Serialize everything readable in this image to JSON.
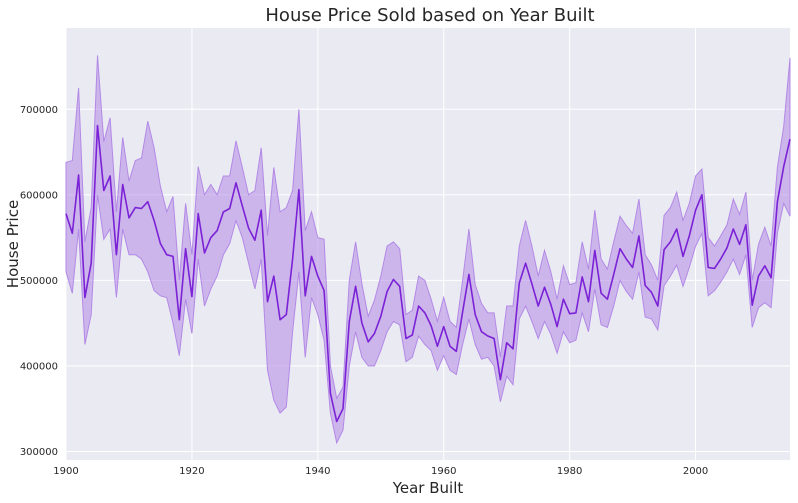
{
  "chart_data": {
    "type": "line",
    "title": "House Price Sold based on Year Built",
    "xlabel": "Year Built",
    "ylabel": "House Price",
    "xlim": [
      1900,
      2015
    ],
    "ylim": [
      290000,
      795000
    ],
    "xticks": [
      1900,
      1920,
      1940,
      1960,
      1980,
      2000
    ],
    "yticks": [
      300000,
      400000,
      500000,
      600000,
      700000
    ],
    "grid": true,
    "line_color": "#7b22d6",
    "band_color": "#b389e6",
    "background": "#eaeaf2",
    "series": [
      {
        "x": [
          1900,
          1901,
          1902,
          1903,
          1904,
          1905,
          1906,
          1907,
          1908,
          1909,
          1910,
          1911,
          1912,
          1913,
          1914,
          1915,
          1916,
          1917,
          1918,
          1919,
          1920,
          1921,
          1922,
          1923,
          1924,
          1925,
          1926,
          1927,
          1928,
          1929,
          1930,
          1931,
          1932,
          1933,
          1934,
          1935,
          1936,
          1937,
          1938,
          1939,
          1940,
          1941,
          1942,
          1943,
          1944,
          1945,
          1946,
          1947,
          1948,
          1949,
          1950,
          1951,
          1952,
          1953,
          1954,
          1955,
          1956,
          1957,
          1958,
          1959,
          1960,
          1961,
          1962,
          1963,
          1964,
          1965,
          1966,
          1967,
          1968,
          1969,
          1970,
          1971,
          1972,
          1973,
          1974,
          1975,
          1976,
          1977,
          1978,
          1979,
          1980,
          1981,
          1982,
          1983,
          1984,
          1985,
          1986,
          1987,
          1988,
          1989,
          1990,
          1991,
          1992,
          1993,
          1994,
          1995,
          1996,
          1997,
          1998,
          1999,
          2000,
          2001,
          2002,
          2003,
          2004,
          2005,
          2006,
          2007,
          2008,
          2009,
          2010,
          2011,
          2012,
          2013,
          2014,
          2015
        ],
        "values": [
          578000,
          555000,
          623000,
          480000,
          520000,
          681000,
          605000,
          622000,
          530000,
          612000,
          573000,
          585000,
          584000,
          592000,
          570000,
          543000,
          530000,
          528000,
          454000,
          537000,
          481000,
          578000,
          532000,
          550000,
          558000,
          580000,
          584000,
          614000,
          587000,
          561000,
          547000,
          582000,
          475000,
          505000,
          454000,
          460000,
          525000,
          606000,
          482000,
          528000,
          505000,
          488000,
          368000,
          335000,
          350000,
          452000,
          493000,
          450000,
          428000,
          438000,
          458000,
          487000,
          501000,
          493000,
          432000,
          436000,
          470000,
          462000,
          447000,
          423000,
          446000,
          423000,
          417000,
          463000,
          507000,
          460000,
          440000,
          435000,
          432000,
          384000,
          427000,
          420000,
          497000,
          520000,
          496000,
          470000,
          492000,
          472000,
          446000,
          478000,
          461000,
          462000,
          504000,
          475000,
          535000,
          485000,
          478000,
          507000,
          537000,
          525000,
          515000,
          552000,
          494000,
          486000,
          470000,
          536000,
          545000,
          560000,
          528000,
          552000,
          582000,
          600000,
          515000,
          514000,
          525000,
          538000,
          560000,
          542000,
          565000,
          471000,
          505000,
          517000,
          503000,
          592000,
          633000,
          665000
        ],
        "lower": [
          510000,
          485000,
          560000,
          425000,
          460000,
          600000,
          548000,
          560000,
          480000,
          560000,
          530000,
          530000,
          525000,
          510000,
          488000,
          482000,
          480000,
          450000,
          412000,
          478000,
          438000,
          525000,
          470000,
          490000,
          505000,
          530000,
          543000,
          570000,
          550000,
          520000,
          490000,
          525000,
          395000,
          360000,
          345000,
          352000,
          440000,
          510000,
          410000,
          480000,
          460000,
          430000,
          345000,
          310000,
          325000,
          400000,
          440000,
          410000,
          400000,
          400000,
          418000,
          440000,
          452000,
          448000,
          405000,
          410000,
          435000,
          425000,
          418000,
          395000,
          412000,
          395000,
          390000,
          425000,
          455000,
          425000,
          408000,
          410000,
          400000,
          358000,
          388000,
          378000,
          455000,
          470000,
          452000,
          432000,
          452000,
          437000,
          415000,
          440000,
          427000,
          430000,
          462000,
          440000,
          490000,
          448000,
          445000,
          470000,
          500000,
          487000,
          478000,
          510000,
          457000,
          455000,
          442000,
          494000,
          505000,
          518000,
          493000,
          515000,
          540000,
          555000,
          482000,
          488000,
          498000,
          510000,
          525000,
          507000,
          530000,
          445000,
          468000,
          474000,
          468000,
          555000,
          590000,
          575000
        ],
        "upper": [
          638000,
          640000,
          725000,
          545000,
          585000,
          763000,
          662000,
          690000,
          580000,
          667000,
          616000,
          640000,
          643000,
          686000,
          655000,
          610000,
          580000,
          598000,
          500000,
          590000,
          530000,
          633000,
          600000,
          612000,
          600000,
          622000,
          622000,
          663000,
          632000,
          600000,
          605000,
          655000,
          552000,
          632000,
          580000,
          585000,
          605000,
          700000,
          558000,
          580000,
          550000,
          548000,
          400000,
          362000,
          375000,
          500000,
          545000,
          496000,
          458000,
          477000,
          505000,
          540000,
          545000,
          537000,
          460000,
          465000,
          505000,
          500000,
          478000,
          452000,
          480000,
          452000,
          445000,
          500000,
          560000,
          495000,
          473000,
          462000,
          462000,
          410000,
          470000,
          470000,
          540000,
          570000,
          540000,
          505000,
          535000,
          510000,
          478000,
          517000,
          495000,
          497000,
          545000,
          513000,
          582000,
          525000,
          513000,
          545000,
          575000,
          564000,
          555000,
          595000,
          530000,
          518000,
          500000,
          576000,
          585000,
          603000,
          570000,
          590000,
          622000,
          630000,
          550000,
          540000,
          552000,
          565000,
          595000,
          577000,
          603000,
          500000,
          542000,
          562000,
          540000,
          632000,
          680000,
          760000
        ]
      }
    ]
  }
}
